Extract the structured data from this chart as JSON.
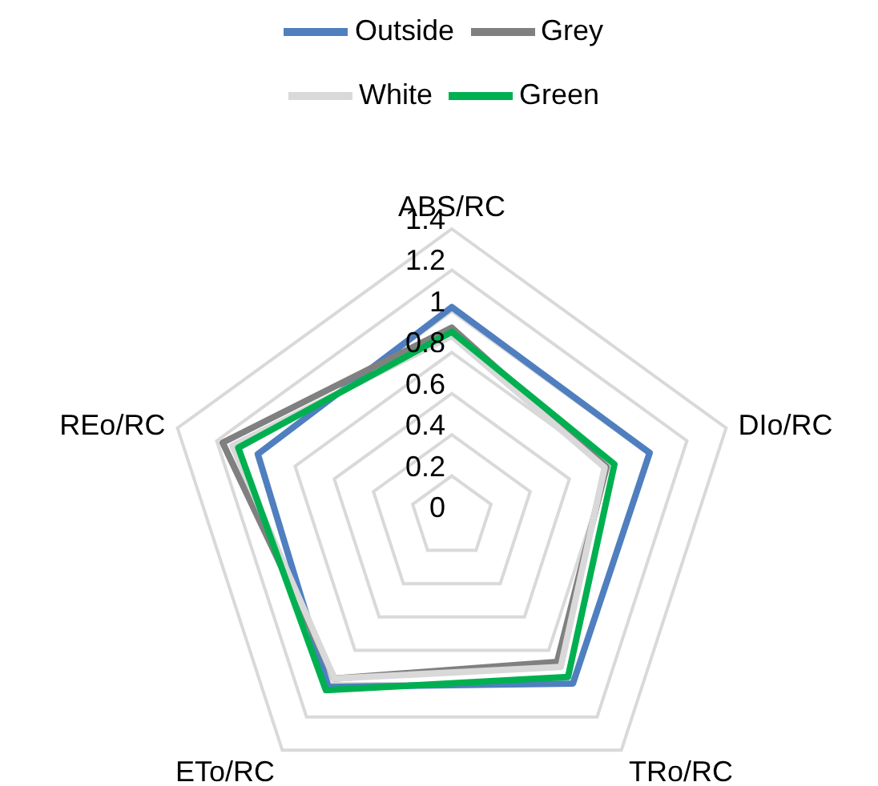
{
  "chart_data": {
    "type": "radar",
    "categories": [
      "ABS/RC",
      "DIo/RC",
      "TRo/RC",
      "ETo/RC",
      "REo/RC"
    ],
    "ylim": [
      0,
      1.4
    ],
    "yticks": [
      0,
      0.2,
      0.4,
      0.6,
      0.8,
      1,
      1.2,
      1.4
    ],
    "grid": true,
    "legend": "top",
    "series": [
      {
        "name": "Outside",
        "color": "#4f7fbf",
        "values": [
          1.02,
          1.01,
          1,
          1.02,
          0.99
        ]
      },
      {
        "name": "Grey",
        "color": "#808080",
        "values": [
          0.92,
          0.79,
          0.87,
          0.97,
          1.17
        ]
      },
      {
        "name": "White",
        "color": "#d9d9d9",
        "values": [
          0.88,
          0.78,
          0.9,
          0.97,
          1.12
        ]
      },
      {
        "name": "Green",
        "color": "#00b050",
        "values": [
          0.9,
          0.83,
          0.96,
          1.04,
          1.09
        ]
      }
    ]
  }
}
